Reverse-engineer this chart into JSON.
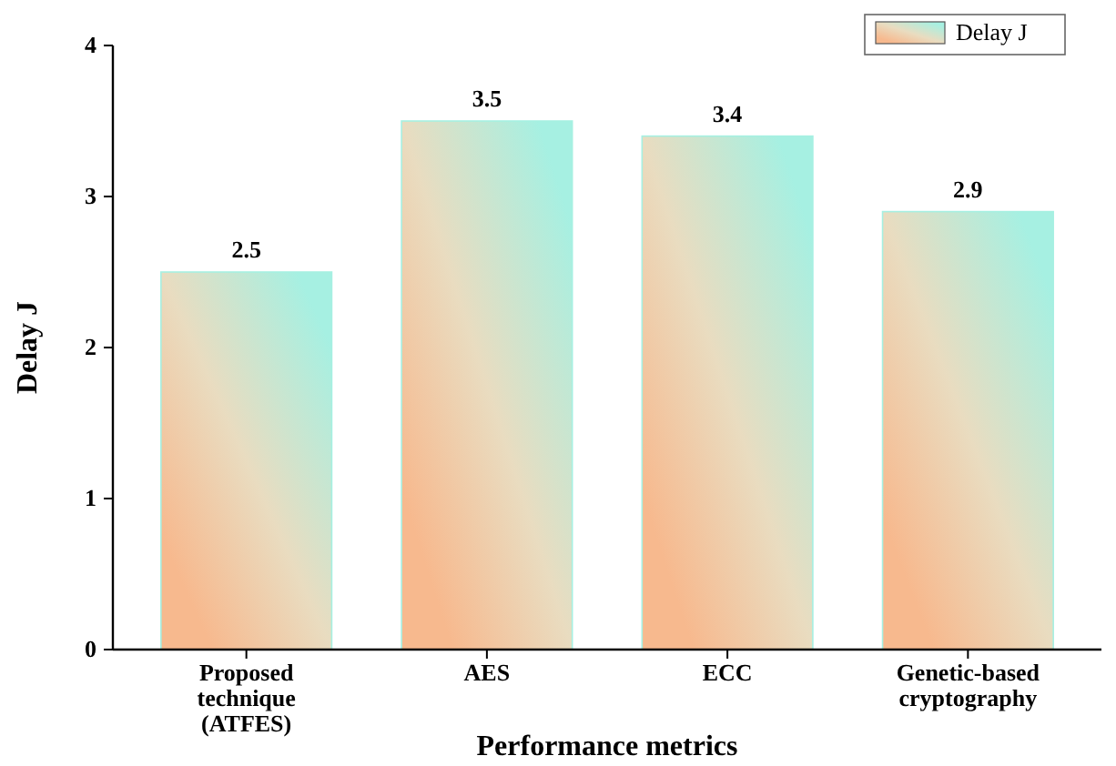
{
  "chart_data": {
    "type": "bar",
    "xlabel": "Performance metrics",
    "ylabel": "Delay J",
    "categories": [
      "Proposed technique (ATFES)",
      "AES",
      "ECC",
      "Genetic-based cryptography"
    ],
    "series": [
      {
        "name": "Delay J",
        "color": "#a6f0e2",
        "values": [
          2.5,
          3.5,
          3.4,
          2.9
        ]
      }
    ],
    "ylim": [
      0,
      4
    ],
    "yticks": [
      0,
      1,
      2,
      3,
      4
    ],
    "data_labels": true,
    "legend": "top right",
    "grid": false
  }
}
